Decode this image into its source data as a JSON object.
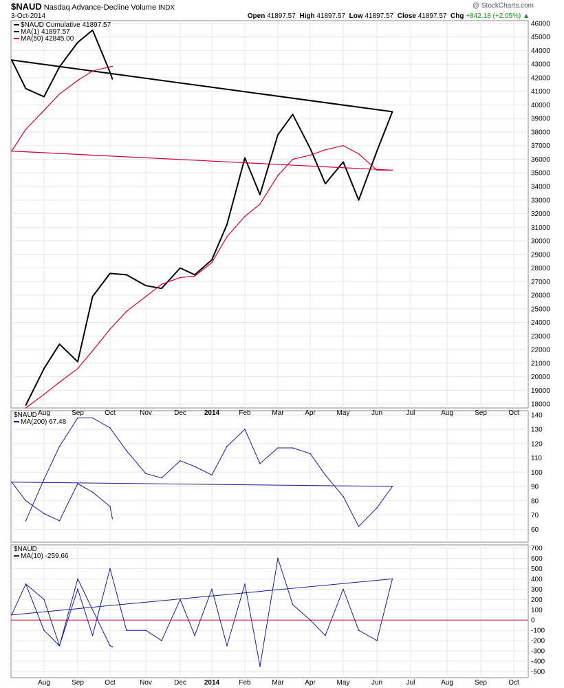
{
  "header": {
    "symbol": "$NAUD",
    "description": "Nasdaq Advance-Decline Volume",
    "exchange": "INDX",
    "watermark": "@ StockCharts.com",
    "date": "3-Oct-2014",
    "open_label": "Open",
    "open": "41897.57",
    "high_label": "High",
    "high": "41897.57",
    "low_label": "Low",
    "low": "41897.57",
    "close_label": "Close",
    "close": "41897.57",
    "chg_label": "Chg",
    "chg": "+842.18 (+2.05%)",
    "chg_arrow": "▲"
  },
  "colors": {
    "price": "#000000",
    "ma50": "#cc0033",
    "indicator": "#1a1a8c",
    "zero_line": "#cc0033",
    "grid": "#e6e6e6"
  },
  "x_axis_labels": [
    "Aug",
    "Sep",
    "Oct",
    "Nov",
    "Dec",
    "2014",
    "Feb",
    "Mar",
    "Apr",
    "May",
    "Jun",
    "Jul",
    "Aug",
    "Sep",
    "Oct"
  ],
  "chart_data": [
    {
      "type": "line",
      "panel": "price",
      "legend": [
        "$NAUD Cumulative 41897.57",
        "MA(1) 41897.57",
        "MA(50) 42845.00"
      ],
      "y_ticks": [
        18000,
        19000,
        20000,
        21000,
        22000,
        23000,
        24000,
        25000,
        26000,
        27000,
        28000,
        29000,
        30000,
        31000,
        32000,
        33000,
        34000,
        35000,
        36000,
        37000,
        38000,
        39000,
        40000,
        41000,
        42000,
        43000,
        44000,
        45000,
        46000
      ],
      "ylim": [
        17700,
        46200
      ],
      "x": [
        "Jul 15",
        "Aug 1",
        "Aug 15",
        "Sep 1",
        "Sep 15",
        "Oct 1",
        "Oct 15",
        "Nov 1",
        "Nov 15",
        "Dec 1",
        "Dec 15",
        "Jan 1",
        "Jan 15",
        "Feb 1",
        "Feb 15",
        "Mar 1",
        "Mar 15",
        "Apr 1",
        "Apr 15",
        "May 1",
        "May 15",
        "Jun 1",
        "Jun 15",
        "Jul 1",
        "Jul 15",
        "Aug 1",
        "Aug 15",
        "Sep 1",
        "Sep 15",
        "Oct 1",
        "Oct 3"
      ],
      "series": [
        {
          "name": "$NAUD Cumulative",
          "values": [
            17900,
            20600,
            22400,
            21100,
            25900,
            27600,
            27500,
            26700,
            26500,
            28000,
            27500,
            28600,
            31200,
            36100,
            33400,
            37800,
            39300,
            36800,
            34200,
            35800,
            33000,
            36600,
            39500,
            43300,
            41200,
            40600,
            42800,
            44600,
            45500,
            42400,
            41900
          ]
        },
        {
          "name": "MA(50)",
          "values": [
            17700,
            18700,
            19600,
            20600,
            21900,
            23500,
            24800,
            25900,
            26800,
            27300,
            27400,
            28400,
            30300,
            31800,
            32700,
            34800,
            36000,
            36300,
            36700,
            37000,
            36400,
            35200,
            35200,
            36600,
            38200,
            39600,
            40800,
            41800,
            42500,
            42800,
            42845
          ]
        }
      ]
    },
    {
      "type": "line",
      "panel": "ma200",
      "legend": [
        "$NAUD",
        "MA(200) 67.48"
      ],
      "y_ticks": [
        60,
        70,
        80,
        90,
        100,
        110,
        120,
        130,
        140
      ],
      "ylim": [
        51,
        143
      ],
      "x": [
        "Jul 15",
        "Aug 1",
        "Aug 15",
        "Sep 1",
        "Sep 15",
        "Oct 1",
        "Oct 15",
        "Nov 1",
        "Nov 15",
        "Dec 1",
        "Dec 15",
        "Jan 1",
        "Jan 15",
        "Feb 1",
        "Feb 15",
        "Mar 1",
        "Mar 15",
        "Apr 1",
        "Apr 15",
        "May 1",
        "May 15",
        "Jun 1",
        "Jun 15",
        "Jul 1",
        "Jul 15",
        "Aug 1",
        "Aug 15",
        "Sep 1",
        "Sep 15",
        "Oct 1",
        "Oct 3"
      ],
      "values": [
        66,
        95,
        118,
        138,
        138,
        131,
        115,
        99,
        96,
        108,
        104,
        98,
        118,
        130,
        106,
        117,
        117,
        113,
        98,
        83,
        62,
        75,
        90,
        93,
        80,
        71,
        66,
        92,
        86,
        76,
        67.48
      ]
    },
    {
      "type": "line",
      "panel": "ma10",
      "legend": [
        "$NAUD",
        "MA(10) -259.66"
      ],
      "y_ticks": [
        -500,
        -400,
        -300,
        -200,
        -100,
        0,
        100,
        200,
        300,
        400,
        500,
        600,
        700
      ],
      "ylim": [
        -560,
        730
      ],
      "zero_line": 0,
      "x": [
        "Jul 15",
        "Aug 1",
        "Aug 15",
        "Sep 1",
        "Sep 15",
        "Oct 1",
        "Oct 15",
        "Nov 1",
        "Nov 15",
        "Dec 1",
        "Dec 15",
        "Jan 1",
        "Jan 15",
        "Feb 1",
        "Feb 15",
        "Mar 1",
        "Mar 15",
        "Apr 1",
        "Apr 15",
        "May 1",
        "May 15",
        "Jun 1",
        "Jun 15",
        "Jul 1",
        "Jul 15",
        "Aug 1",
        "Aug 15",
        "Sep 1",
        "Sep 15",
        "Oct 1",
        "Oct 3"
      ],
      "values": [
        350,
        200,
        -250,
        300,
        -150,
        500,
        -100,
        -100,
        -200,
        200,
        -150,
        300,
        -250,
        350,
        -450,
        600,
        150,
        0,
        -150,
        300,
        -100,
        -200,
        400,
        50,
        350,
        -100,
        -250,
        400,
        100,
        -250,
        -259.66
      ]
    }
  ]
}
